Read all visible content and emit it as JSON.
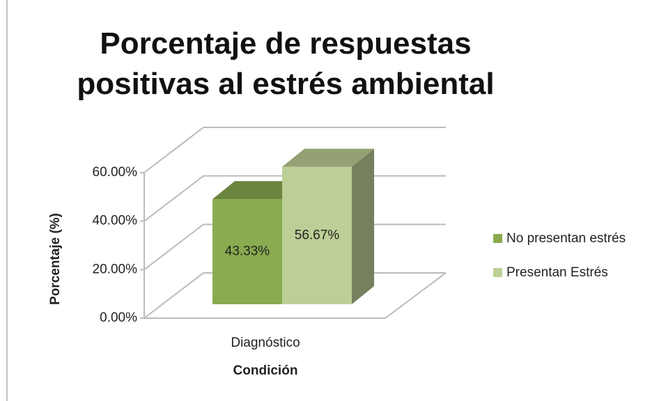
{
  "chart_data": {
    "type": "bar3d",
    "title": "Porcentaje de respuestas positivas al estrés ambiental",
    "xlabel": "Condición",
    "ylabel": "Porcentaje (%)",
    "categories": [
      "Diagnóstico"
    ],
    "series": [
      {
        "name": "No presentan estrés",
        "color": "#8aab4f",
        "values": [
          43.33
        ],
        "value_labels": [
          "43.33%"
        ]
      },
      {
        "name": "Presentan Estrés",
        "color": "#bccf96",
        "values": [
          56.67
        ],
        "value_labels": [
          "56.67%"
        ]
      }
    ],
    "ylim": [
      0,
      60
    ],
    "yticks": [
      {
        "value": 0,
        "label": "0.00%"
      },
      {
        "value": 20,
        "label": "20.00%"
      },
      {
        "value": 40,
        "label": "40.00%"
      },
      {
        "value": 60,
        "label": "60.00%"
      }
    ],
    "grid": true,
    "legend": "right"
  }
}
